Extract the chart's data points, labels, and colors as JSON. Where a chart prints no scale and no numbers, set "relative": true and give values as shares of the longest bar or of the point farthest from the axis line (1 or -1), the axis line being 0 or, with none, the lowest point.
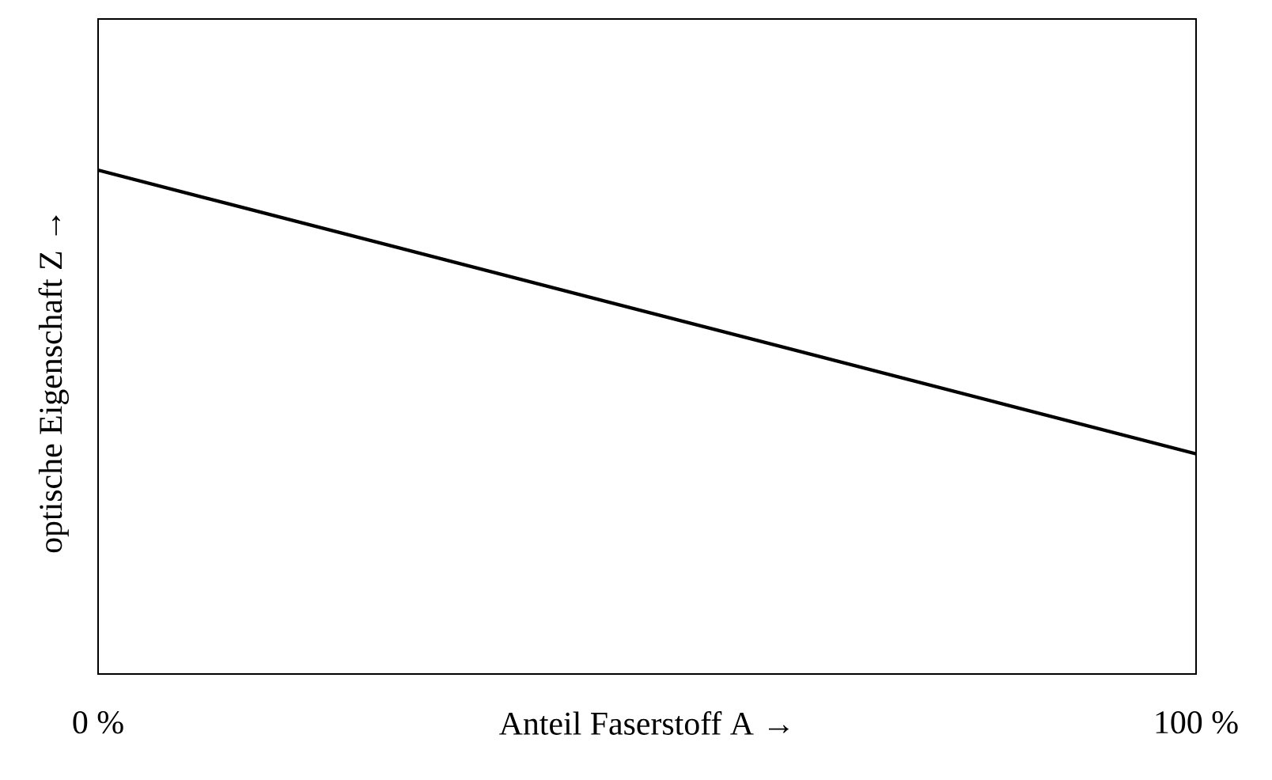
{
  "chart_data": {
    "type": "line",
    "relative": true,
    "xlabel": "Anteil Faserstoff A →",
    "ylabel": "optische Eigenschaft Z →",
    "x": [
      0,
      100
    ],
    "xlim": [
      0,
      100
    ],
    "xticks": [
      {
        "value": 0,
        "label": "0 %"
      },
      {
        "value": 100,
        "label": "100 %"
      }
    ],
    "tick_labels": "x",
    "series": [
      {
        "color": "#000000",
        "values": [
          1,
          0.437
        ]
      }
    ],
    "marker": "none",
    "line_style": "solid"
  }
}
